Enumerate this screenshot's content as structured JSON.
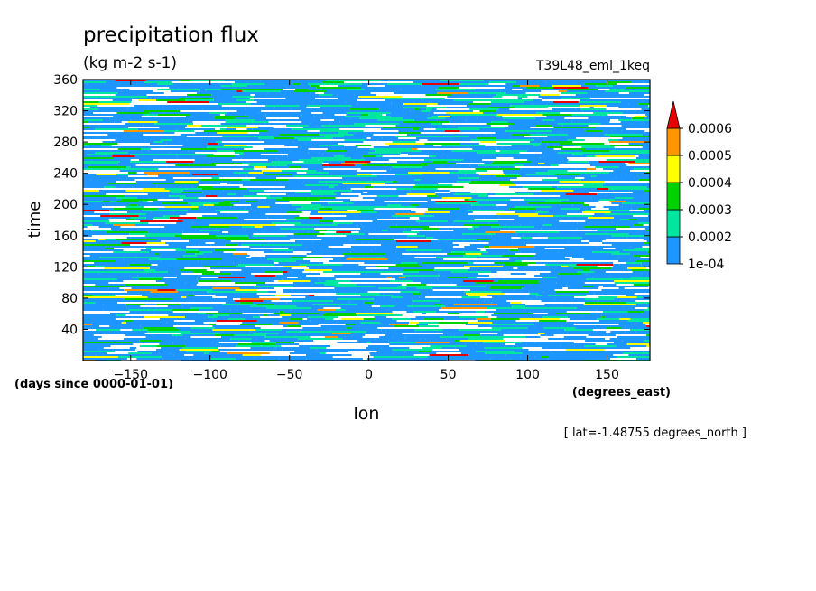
{
  "chart_data": {
    "type": "heatmap",
    "title": "precipitation flux",
    "units": "(kg m-2 s-1)",
    "experiment": "T39L48_eml_1keq",
    "xlabel": "lon",
    "x_units": "(degrees_east)",
    "ylabel": "time",
    "y_units": "(days since 0000-01-01)",
    "subset_note": "[ lat=-1.48755 degrees_north ]",
    "xlim": [
      -180,
      177
    ],
    "ylim": [
      0,
      360
    ],
    "x_ticks": [
      -150,
      -100,
      -50,
      0,
      50,
      100,
      150
    ],
    "x_tick_labels": [
      "−150",
      "−100",
      "−50",
      "0",
      "50",
      "100",
      "150"
    ],
    "y_ticks": [
      40,
      80,
      120,
      160,
      200,
      240,
      280,
      320,
      360
    ],
    "y_tick_labels": [
      "40",
      "80",
      "120",
      "160",
      "200",
      "240",
      "280",
      "320",
      "360"
    ],
    "colorbar": {
      "levels": [
        0.0001,
        0.0002,
        0.0003,
        0.0004,
        0.0005,
        0.0006
      ],
      "level_labels": [
        "1e-04",
        "0.0002",
        "0.0003",
        "0.0004",
        "0.0005",
        "0.0006"
      ],
      "colors": [
        "#1e96ff",
        "#00e6a0",
        "#00d200",
        "#ffff00",
        "#ff9600",
        "#e60000"
      ],
      "extend": "max",
      "below_lowest_color": "#ffffff"
    }
  }
}
